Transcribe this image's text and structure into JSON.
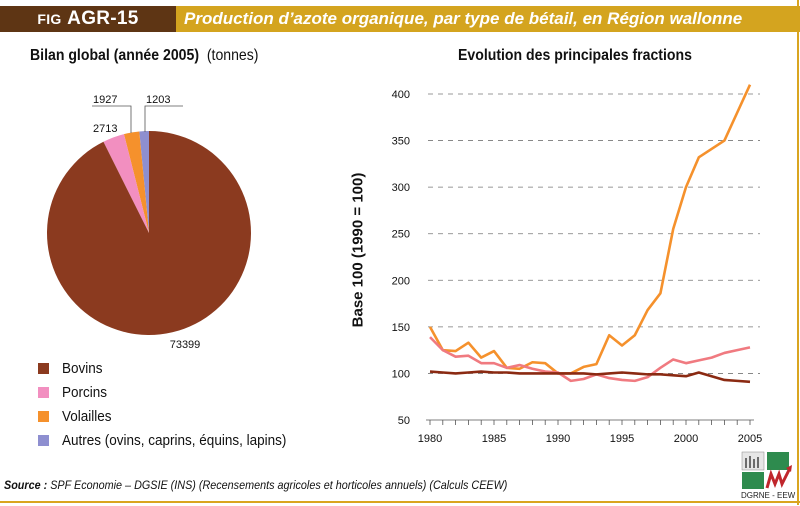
{
  "header": {
    "fig_prefix": "Fig",
    "fig_id": "AGR-15",
    "title": "Production d’azote organique, par type de bétail, en Région wallonne"
  },
  "pie_panel": {
    "title": "Bilan global (année 2005)",
    "unit": "(tonnes)"
  },
  "line_panel": {
    "title": "Evolution des principales fractions",
    "ylabel": "Base 100 (1990 = 100)"
  },
  "legend": [
    {
      "label": "Bovins",
      "color": "#8b3a1f"
    },
    {
      "label": "Porcins",
      "color": "#f28fc0"
    },
    {
      "label": "Volailles",
      "color": "#f5912c"
    },
    {
      "label": "Autres (ovins, caprins, équins, lapins)",
      "color": "#8e8fd0"
    }
  ],
  "footer": {
    "source_label": "Source :",
    "source_text": "SPF Economie – DGSIE (INS) (Recensements agricoles et horticoles annuels) (Calculs CEEW)",
    "logo_text": "DGRNE - EEW"
  },
  "chart_data": [
    {
      "type": "pie",
      "title": "Bilan global (année 2005) (tonnes)",
      "slices": [
        {
          "name": "Bovins",
          "value": 73399,
          "color": "#8b3a1f"
        },
        {
          "name": "Porcins",
          "value": 2713,
          "color": "#f28fc0"
        },
        {
          "name": "Volailles",
          "value": 1927,
          "color": "#f5912c"
        },
        {
          "name": "Autres (ovins, caprins, équins, lapins)",
          "value": 1203,
          "color": "#8e8fd0"
        }
      ]
    },
    {
      "type": "line",
      "title": "Evolution des principales fractions",
      "xlabel": "",
      "ylabel": "Base 100 (1990 = 100)",
      "x": [
        1980,
        1981,
        1982,
        1983,
        1984,
        1985,
        1986,
        1987,
        1988,
        1989,
        1990,
        1991,
        1992,
        1993,
        1994,
        1995,
        1996,
        1997,
        1998,
        1999,
        2000,
        2001,
        2002,
        2003,
        2004,
        2005
      ],
      "xticks": [
        1980,
        1985,
        1990,
        1995,
        2000,
        2005
      ],
      "yticks": [
        50,
        100,
        150,
        200,
        250,
        300,
        350,
        400
      ],
      "xlim": [
        1980,
        2005
      ],
      "ylim": [
        50,
        410
      ],
      "grid": "horizontal dashed",
      "series": [
        {
          "name": "Volailles",
          "color": "#f5912c",
          "values": [
            150,
            125,
            124,
            133,
            117,
            124,
            106,
            105,
            112,
            111,
            100,
            100,
            107,
            110,
            141,
            130,
            141,
            168,
            186,
            255,
            300,
            332,
            341,
            350,
            380,
            410
          ]
        },
        {
          "name": "Porcins",
          "color": "#f07a80",
          "values": [
            139,
            125,
            118,
            119,
            111,
            111,
            106,
            109,
            105,
            102,
            101,
            92,
            94,
            99,
            95,
            93,
            92,
            96,
            106,
            115,
            111,
            114,
            117,
            122,
            125,
            128
          ]
        },
        {
          "name": "Bovins",
          "color": "#8b2a12",
          "values": [
            102,
            101,
            100,
            101,
            102,
            101,
            101,
            100,
            100,
            100,
            100,
            100,
            100,
            99,
            100,
            101,
            100,
            99,
            99,
            98,
            97,
            101,
            97,
            93,
            92,
            91
          ]
        }
      ]
    }
  ]
}
